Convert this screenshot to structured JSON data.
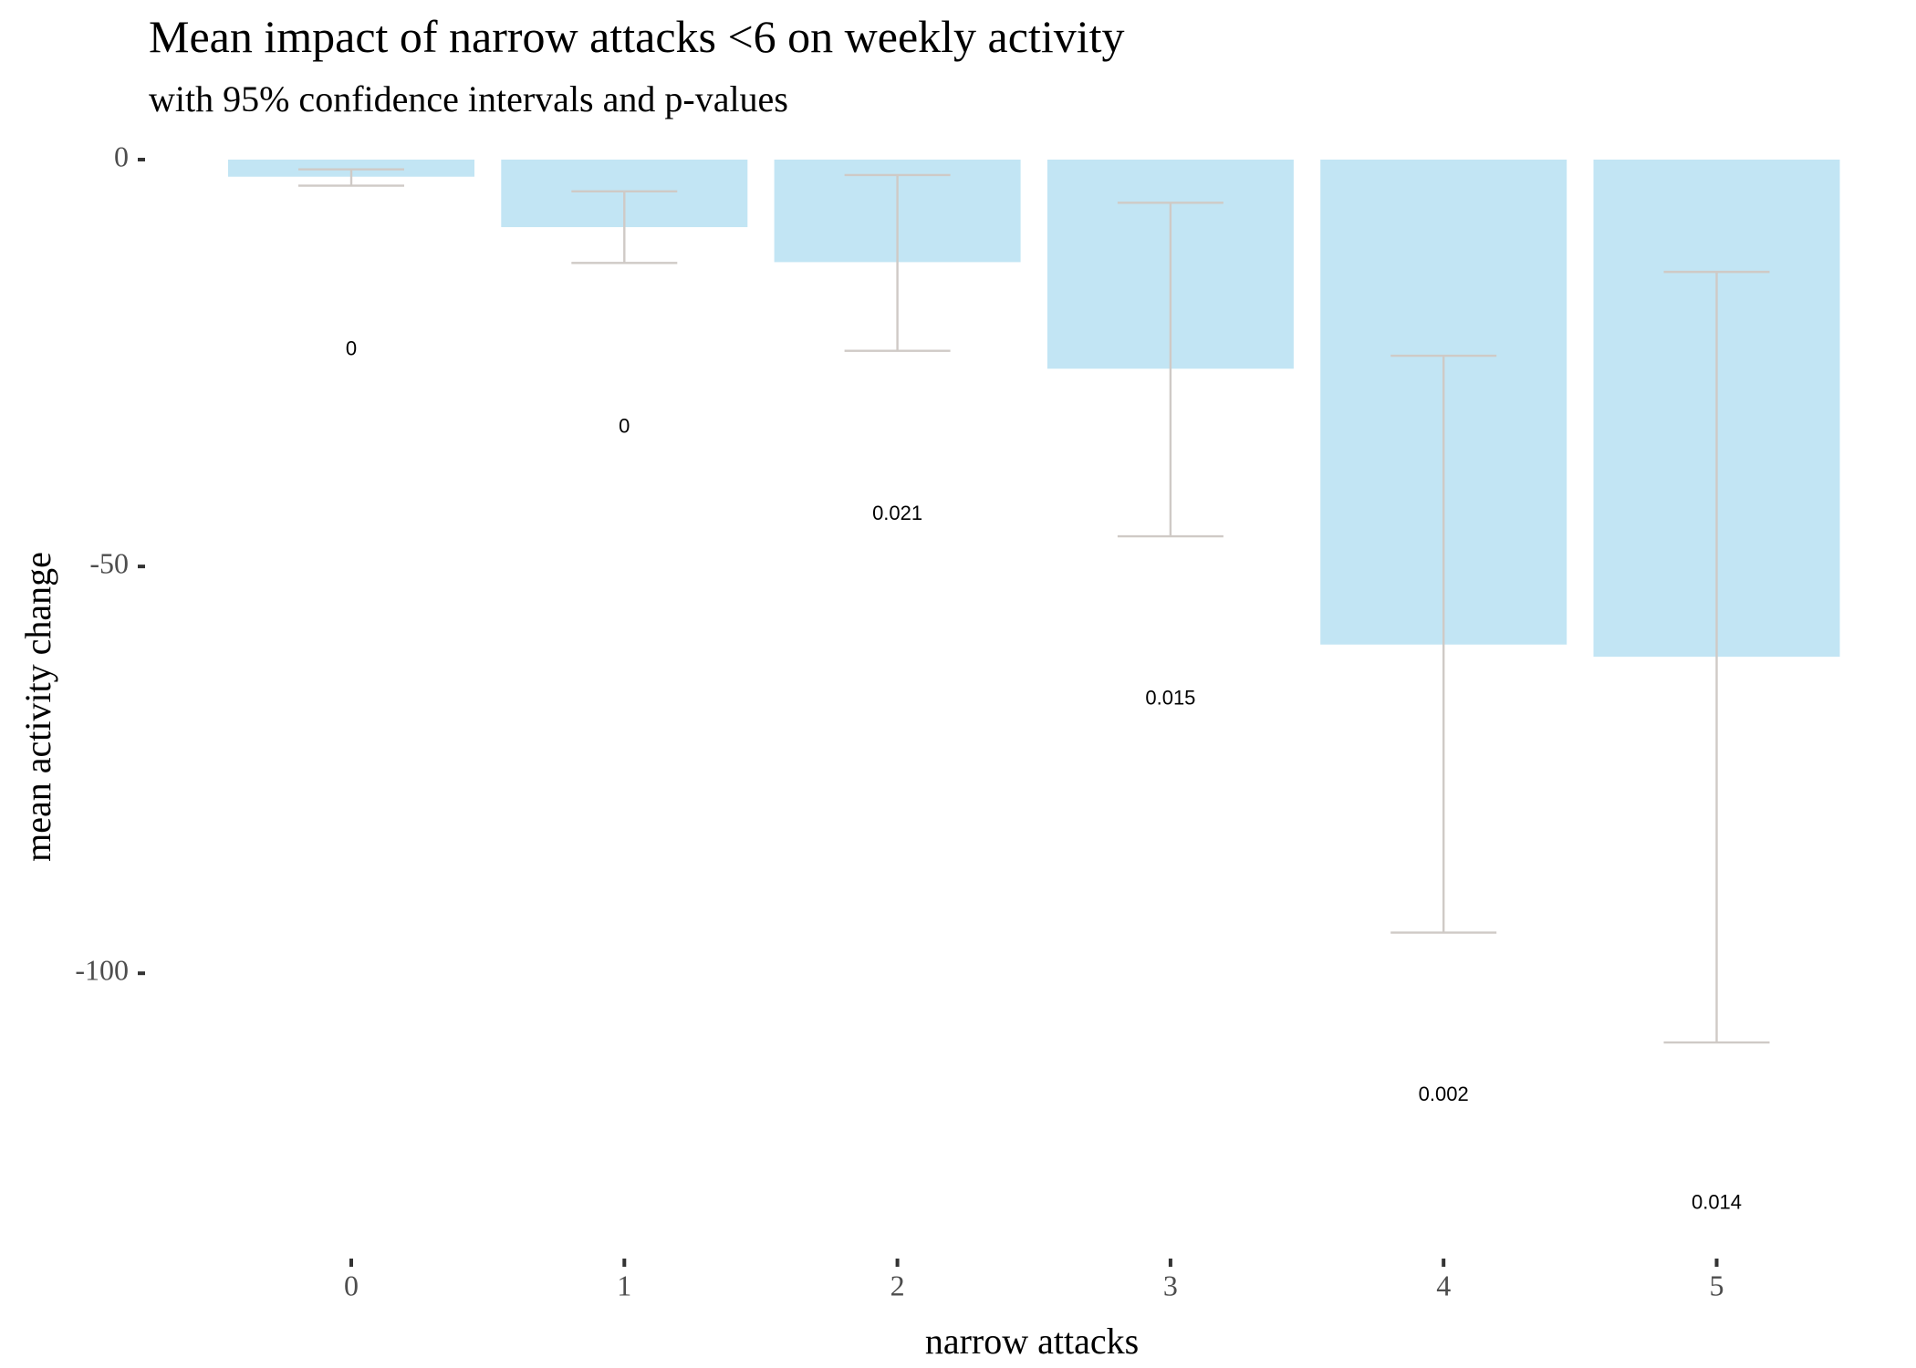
{
  "chart_data": {
    "type": "bar",
    "title": "Mean impact of narrow attacks <6 on  weekly activity",
    "subtitle": "with 95% confidence intervals and p-values",
    "xlabel": "narrow attacks",
    "ylabel": "mean activity change",
    "categories": [
      "0",
      "1",
      "2",
      "3",
      "4",
      "5"
    ],
    "values": [
      -2.1,
      -8.3,
      -12.6,
      -25.7,
      -59.6,
      -61.1
    ],
    "ci_lower": [
      -3.2,
      -12.7,
      -23.5,
      -46.3,
      -95.0,
      -108.5
    ],
    "ci_upper": [
      -1.2,
      -3.9,
      -1.9,
      -5.3,
      -24.1,
      -13.8
    ],
    "p_values": [
      "0",
      "0",
      "0.021",
      "0.015",
      "0.002",
      "0.014"
    ],
    "p_label_y": [
      -23.4,
      -32.9,
      -43.6,
      -66.3,
      -115.0,
      -128.3
    ],
    "yticks": [
      0,
      -50,
      -100
    ],
    "ytick_labels": [
      "0",
      "-50",
      "-100"
    ],
    "ylim": [
      -134.5,
      0
    ],
    "grid": false,
    "legend": "none",
    "colors": {
      "bar": "#c2e5f4",
      "errorbar": "#cfcac6",
      "tick": "#333333",
      "tick_label": "#4d4d4d",
      "text": "#000000"
    }
  }
}
